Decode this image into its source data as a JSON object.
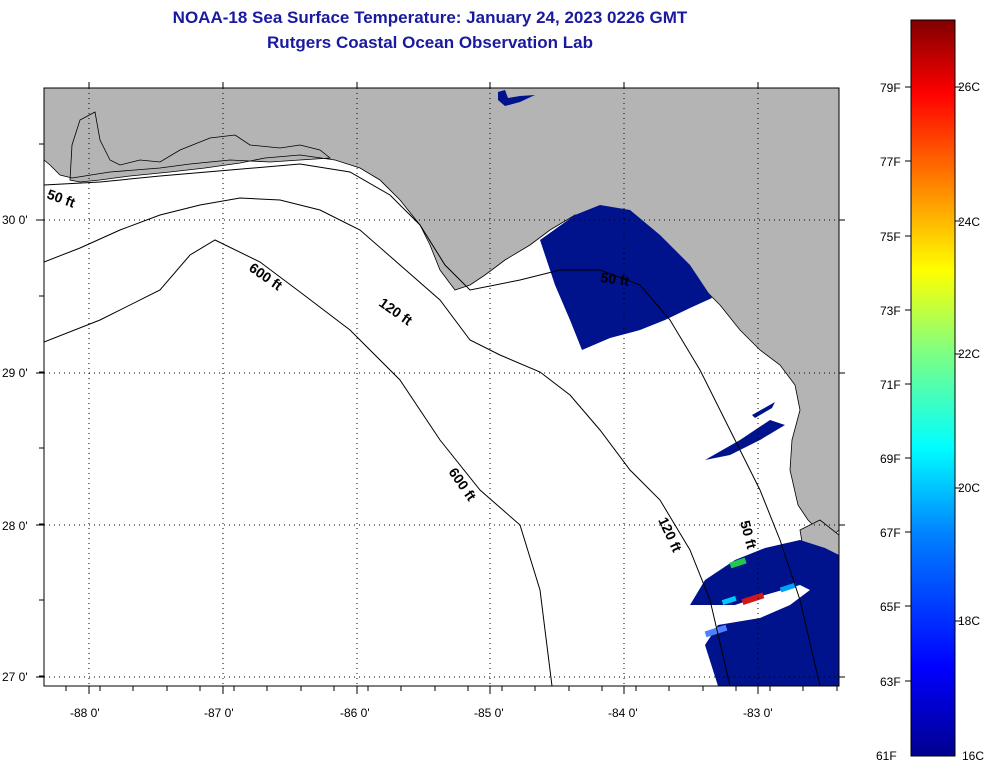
{
  "title": "NOAA-18 Sea Surface Temperature:  January 24, 2023 0226 GMT",
  "subtitle": "Rutgers Coastal Ocean Observation Lab",
  "map": {
    "lon_labels": [
      "-88 0'",
      "-87 0'",
      "-86 0'",
      "-85 0'",
      "-84 0'",
      "-83 0'"
    ],
    "lat_labels": [
      "30 0'",
      "29 0'",
      "28 0'",
      "27 0'"
    ],
    "contour_labels": {
      "c50_west": "50 ft",
      "c600_north": "600 ft",
      "c120_north": "120 ft",
      "c50_bigbend": "50 ft",
      "c600_south": "600 ft",
      "c120_south": "120 ft",
      "c50_south": "50 ft"
    },
    "colors": {
      "land": "#b4b4b4",
      "water": "#ffffff",
      "cold_sst": "#00128c"
    }
  },
  "colorbar": {
    "fahrenheit_labels": [
      "79F",
      "77F",
      "75F",
      "73F",
      "71F",
      "69F",
      "67F",
      "65F",
      "63F",
      "61F"
    ],
    "celsius_labels": [
      "26C",
      "24C",
      "22C",
      "20C",
      "18C",
      "16C"
    ],
    "colors": [
      "#00008f",
      "#0000ff",
      "#0080ff",
      "#00ffff",
      "#80ff80",
      "#ffff00",
      "#ff8000",
      "#ff0000",
      "#800000"
    ]
  }
}
